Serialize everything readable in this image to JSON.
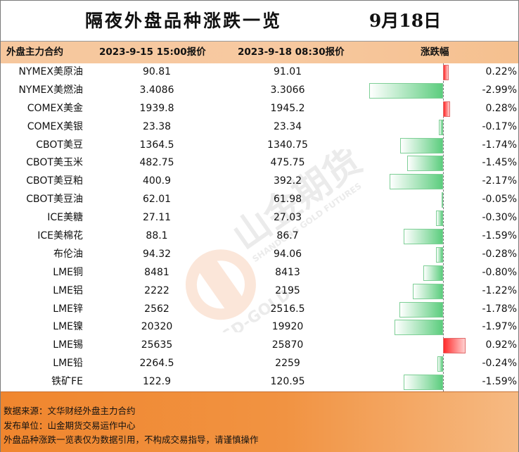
{
  "title": "隔夜外盘品种涨跌一览",
  "date": "9月18日",
  "headers": {
    "name": "外盘主力合约",
    "price1": "2023-9-15 15:00报价",
    "price2": "2023-9-18 08:30报价",
    "change": "涨跌幅"
  },
  "colors": {
    "header_bg": "#f6c79d",
    "footer_bg": "#f0862e",
    "up": "#ff2a2a",
    "down": "#5ccd7e"
  },
  "rows": [
    {
      "name": "NYMEX美原油",
      "price1": "90.81",
      "price2": "91.01",
      "change": "0.22%",
      "value": 0.22
    },
    {
      "name": "NYMEX美燃油",
      "price1": "3.4086",
      "price2": "3.3066",
      "change": "-2.99%",
      "value": -2.99
    },
    {
      "name": "COMEX美金",
      "price1": "1939.8",
      "price2": "1945.2",
      "change": "0.28%",
      "value": 0.28
    },
    {
      "name": "COMEX美银",
      "price1": "23.38",
      "price2": "23.34",
      "change": "-0.17%",
      "value": -0.17
    },
    {
      "name": "CBOT美豆",
      "price1": "1364.5",
      "price2": "1340.75",
      "change": "-1.74%",
      "value": -1.74
    },
    {
      "name": "CBOT美玉米",
      "price1": "482.75",
      "price2": "475.75",
      "change": "-1.45%",
      "value": -1.45
    },
    {
      "name": "CBOT美豆粕",
      "price1": "400.9",
      "price2": "392.2",
      "change": "-2.17%",
      "value": -2.17
    },
    {
      "name": "CBOT美豆油",
      "price1": "62.01",
      "price2": "61.98",
      "change": "-0.05%",
      "value": -0.05
    },
    {
      "name": "ICE美糖",
      "price1": "27.11",
      "price2": "27.03",
      "change": "-0.30%",
      "value": -0.3
    },
    {
      "name": "ICE美棉花",
      "price1": "88.1",
      "price2": "86.7",
      "change": "-1.59%",
      "value": -1.59
    },
    {
      "name": "布伦油",
      "price1": "94.32",
      "price2": "94.06",
      "change": "-0.28%",
      "value": -0.28
    },
    {
      "name": "LME铜",
      "price1": "8481",
      "price2": "8413",
      "change": "-0.80%",
      "value": -0.8
    },
    {
      "name": "LME铝",
      "price1": "2222",
      "price2": "2195",
      "change": "-1.22%",
      "value": -1.22
    },
    {
      "name": "LME锌",
      "price1": "2562",
      "price2": "2516.5",
      "change": "-1.78%",
      "value": -1.78
    },
    {
      "name": "LME镍",
      "price1": "20320",
      "price2": "19920",
      "change": "-1.97%",
      "value": -1.97
    },
    {
      "name": "LME锡",
      "price1": "25635",
      "price2": "25870",
      "change": "0.92%",
      "value": 0.92
    },
    {
      "name": "LME铅",
      "price1": "2264.5",
      "price2": "2259",
      "change": "-0.24%",
      "value": -0.24
    },
    {
      "name": "铁矿FE",
      "price1": "122.9",
      "price2": "120.95",
      "change": "-1.59%",
      "value": -1.59
    }
  ],
  "watermark": {
    "cn": "山金期货",
    "en": "SHANDONG GOLD FUTURES",
    "logo": "SD-GOLD"
  },
  "footer": {
    "line1": "数据来源：文华财经外盘主力合约",
    "line2": "发布单位：山金期货交易运作中心",
    "line3": "外盘品种涨跌一览表仅为数据引用，不构成交易指导，请谨慎操作"
  }
}
